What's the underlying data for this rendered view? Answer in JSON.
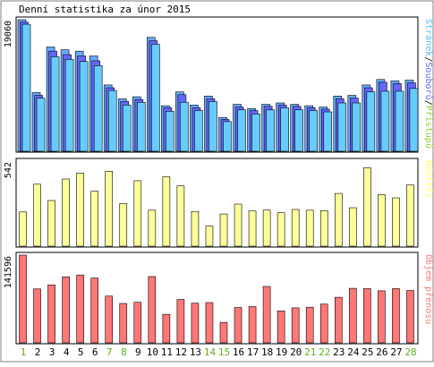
{
  "title": "Denní statistika za únor 2015",
  "colors": {
    "background": "#ffffff",
    "panel_border": "#000000",
    "frame_border": "#808080",
    "hits_fill": "#66aaff",
    "files_fill": "#6666ff",
    "pages_fill": "#66ccff",
    "visits_fill": "#ffff99",
    "traffic_fill": "#ff7777",
    "weekday_label": "#000000",
    "weekend_label": "#66aa22",
    "legend_hits": "#99cc33",
    "legend_files": "#6666ff",
    "legend_pages": "#55bbff",
    "legend_visits": "#ffff66",
    "legend_traffic": "#ff7777"
  },
  "chart_data": [
    {
      "type": "bar",
      "panel": "requests",
      "y_max_label": "19060",
      "ylim": [
        0,
        19060
      ],
      "categories": [
        "1",
        "2",
        "3",
        "4",
        "5",
        "6",
        "7",
        "8",
        "9",
        "10",
        "11",
        "12",
        "13",
        "14",
        "15",
        "16",
        "17",
        "18",
        "19",
        "20",
        "21",
        "22",
        "23",
        "24",
        "25",
        "26",
        "27",
        "28"
      ],
      "weekend": [
        true,
        false,
        false,
        false,
        false,
        false,
        true,
        true,
        false,
        false,
        false,
        false,
        false,
        true,
        true,
        false,
        false,
        false,
        false,
        false,
        true,
        true,
        false,
        false,
        false,
        false,
        false,
        true
      ],
      "series": [
        {
          "name": "Přístupů",
          "values": [
            19060,
            8500,
            15100,
            14700,
            14500,
            13800,
            9600,
            7600,
            7900,
            16500,
            6600,
            8600,
            6700,
            8000,
            4900,
            6800,
            6200,
            6800,
            7000,
            6800,
            6600,
            6400,
            8000,
            8100,
            9600,
            10400,
            10200,
            10300
          ]
        },
        {
          "name": "Souborů",
          "values": [
            18700,
            8100,
            14500,
            14000,
            13800,
            13100,
            9200,
            7200,
            7500,
            16000,
            6300,
            8200,
            6300,
            7600,
            4600,
            6400,
            5900,
            6500,
            6700,
            6500,
            6300,
            6100,
            7600,
            7700,
            9200,
            10000,
            9800,
            9900
          ]
        },
        {
          "name": "Stránek",
          "values": [
            18400,
            7700,
            13700,
            13300,
            13000,
            12400,
            8800,
            6700,
            7100,
            15500,
            5800,
            7100,
            5900,
            7200,
            4300,
            6000,
            5400,
            6000,
            6300,
            6000,
            5900,
            5700,
            7000,
            7000,
            8600,
            8700,
            8700,
            9100
          ]
        }
      ],
      "legend": [
        "Stránek",
        "Souborů",
        "Přístupů"
      ]
    },
    {
      "type": "bar",
      "panel": "visits",
      "y_max_label": "542",
      "ylim": [
        0,
        542
      ],
      "categories": [
        "1",
        "2",
        "3",
        "4",
        "5",
        "6",
        "7",
        "8",
        "9",
        "10",
        "11",
        "12",
        "13",
        "14",
        "15",
        "16",
        "17",
        "18",
        "19",
        "20",
        "21",
        "22",
        "23",
        "24",
        "25",
        "26",
        "27",
        "28"
      ],
      "series": [
        {
          "name": "Návštěv",
          "values": [
            218,
            395,
            291,
            428,
            466,
            350,
            477,
            271,
            417,
            229,
            443,
            384,
            221,
            128,
            205,
            268,
            224,
            230,
            213,
            234,
            229,
            227,
            336,
            245,
            500,
            328,
            308,
            390
          ]
        }
      ],
      "legend": [
        "Návštěv"
      ]
    },
    {
      "type": "bar",
      "panel": "traffic",
      "y_max_label": "141596",
      "ylim": [
        0,
        141596
      ],
      "categories": [
        "1",
        "2",
        "3",
        "4",
        "5",
        "6",
        "7",
        "8",
        "9",
        "10",
        "11",
        "12",
        "13",
        "14",
        "15",
        "16",
        "17",
        "18",
        "19",
        "20",
        "21",
        "22",
        "23",
        "24",
        "25",
        "26",
        "27",
        "28"
      ],
      "series": [
        {
          "name": "Objem přenosu",
          "values": [
            141596,
            87000,
            93500,
            106500,
            109500,
            104500,
            75500,
            63500,
            65500,
            107000,
            46000,
            70000,
            64000,
            65000,
            33000,
            57000,
            58500,
            91000,
            51500,
            56500,
            57500,
            62500,
            73500,
            88000,
            87500,
            84000,
            87500,
            84500
          ]
        }
      ],
      "legend": [
        "Objem přenosu"
      ]
    }
  ]
}
